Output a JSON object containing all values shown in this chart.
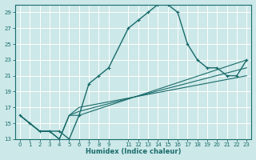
{
  "xlabel": "Humidex (Indice chaleur)",
  "background_color": "#cce8e8",
  "grid_color": "#ffffff",
  "line_color": "#1a6b6b",
  "xlim": [
    -0.5,
    23.5
  ],
  "ylim": [
    13,
    30
  ],
  "xticks": [
    0,
    1,
    2,
    3,
    4,
    5,
    6,
    7,
    8,
    9,
    11,
    12,
    13,
    14,
    15,
    16,
    17,
    18,
    19,
    20,
    21,
    22,
    23
  ],
  "yticks": [
    13,
    15,
    17,
    19,
    21,
    23,
    25,
    27,
    29
  ],
  "series": [
    {
      "x": [
        0,
        1,
        2,
        3,
        4,
        5,
        6,
        7,
        8,
        9,
        11,
        12,
        13,
        14,
        15,
        16,
        17,
        18,
        19,
        20,
        21,
        22,
        23
      ],
      "y": [
        16,
        15,
        14,
        14,
        14,
        13,
        16,
        20,
        21,
        22,
        27,
        28,
        29,
        30,
        30,
        29,
        25,
        23,
        22,
        22,
        21,
        21,
        23
      ],
      "marker": true,
      "linewidth": 1.0
    },
    {
      "x": [
        0,
        2,
        3,
        4,
        5,
        6,
        23
      ],
      "y": [
        16,
        14,
        14,
        13,
        16,
        16,
        23
      ],
      "marker": false,
      "linewidth": 0.8
    },
    {
      "x": [
        0,
        2,
        3,
        4,
        5,
        6,
        23
      ],
      "y": [
        16,
        14,
        14,
        13,
        16,
        16.5,
        22
      ],
      "marker": false,
      "linewidth": 0.8
    },
    {
      "x": [
        0,
        2,
        3,
        4,
        5,
        6,
        23
      ],
      "y": [
        16,
        14,
        14,
        13,
        16,
        17,
        21
      ],
      "marker": false,
      "linewidth": 0.8
    }
  ]
}
